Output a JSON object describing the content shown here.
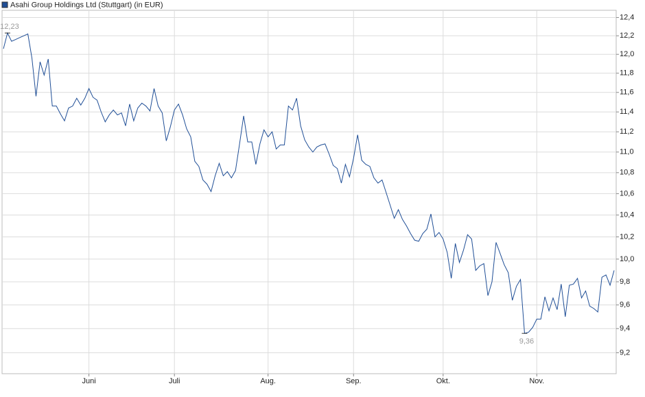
{
  "chart_data": {
    "type": "line",
    "log_scale": true,
    "grid": true,
    "title": "Asahi Group Holdings Ltd (Stuttgart) (in EUR)",
    "series": [
      {
        "color": "#1f4e96",
        "values": [
          12.06,
          12.23,
          12.14,
          12.16,
          12.18,
          12.2,
          12.22,
          11.96,
          11.56,
          11.92,
          11.78,
          11.95,
          11.46,
          11.46,
          11.38,
          11.31,
          11.44,
          11.46,
          11.54,
          11.47,
          11.54,
          11.64,
          11.55,
          11.52,
          11.4,
          11.3,
          11.37,
          11.42,
          11.37,
          11.39,
          11.26,
          11.48,
          11.31,
          11.44,
          11.49,
          11.46,
          11.41,
          11.64,
          11.46,
          11.39,
          11.11,
          11.25,
          11.42,
          11.48,
          11.37,
          11.23,
          11.15,
          10.91,
          10.86,
          10.73,
          10.69,
          10.62,
          10.77,
          10.89,
          10.77,
          10.81,
          10.75,
          10.82,
          11.08,
          11.36,
          11.1,
          11.1,
          10.88,
          11.08,
          11.22,
          11.15,
          11.2,
          11.03,
          11.07,
          11.07,
          11.46,
          11.42,
          11.54,
          11.26,
          11.12,
          11.05,
          11.0,
          11.05,
          11.07,
          11.08,
          10.98,
          10.87,
          10.84,
          10.7,
          10.88,
          10.76,
          10.94,
          11.17,
          10.92,
          10.88,
          10.86,
          10.75,
          10.7,
          10.73,
          10.61,
          10.49,
          10.37,
          10.45,
          10.36,
          10.3,
          10.23,
          10.17,
          10.16,
          10.23,
          10.27,
          10.41,
          10.2,
          10.24,
          10.18,
          10.06,
          9.83,
          10.14,
          9.97,
          10.08,
          10.22,
          10.18,
          9.9,
          9.94,
          9.96,
          9.68,
          9.8,
          10.15,
          10.05,
          9.95,
          9.88,
          9.64,
          9.76,
          9.82,
          9.36,
          9.37,
          9.41,
          9.48,
          9.48,
          9.67,
          9.55,
          9.66,
          9.56,
          9.78,
          9.5,
          9.77,
          9.78,
          9.83,
          9.66,
          9.72,
          9.59,
          9.57,
          9.54,
          9.84,
          9.86,
          9.77,
          9.9
        ]
      }
    ],
    "annotations": [
      {
        "value": 12.23,
        "label": "12,23"
      },
      {
        "value": 9.36,
        "label": "9,36"
      }
    ],
    "xlim": [
      0,
      150
    ],
    "xticks": [
      {
        "value": 21,
        "label": "Juni"
      },
      {
        "value": 42,
        "label": "Juli"
      },
      {
        "value": 65,
        "label": "Aug."
      },
      {
        "value": 86,
        "label": "Sep."
      },
      {
        "value": 108,
        "label": "Okt."
      },
      {
        "value": 131,
        "label": "Nov."
      }
    ],
    "ylim": [
      9.03,
      12.48
    ],
    "yticks": [
      {
        "value": 9.2,
        "label": "9,2"
      },
      {
        "value": 9.4,
        "label": "9,4"
      },
      {
        "value": 9.6,
        "label": "9,6"
      },
      {
        "value": 9.8,
        "label": "9,8"
      },
      {
        "value": 10.0,
        "label": "10,0"
      },
      {
        "value": 10.2,
        "label": "10,2"
      },
      {
        "value": 10.4,
        "label": "10,4"
      },
      {
        "value": 10.6,
        "label": "10,6"
      },
      {
        "value": 10.8,
        "label": "10,8"
      },
      {
        "value": 11.0,
        "label": "11,0"
      },
      {
        "value": 11.2,
        "label": "11,2"
      },
      {
        "value": 11.4,
        "label": "11,4"
      },
      {
        "value": 11.6,
        "label": "11,6"
      },
      {
        "value": 11.8,
        "label": "11,8"
      },
      {
        "value": 12.0,
        "label": "12,0"
      },
      {
        "value": 12.2,
        "label": "12,2"
      },
      {
        "value": 12.4,
        "label": "12,4"
      }
    ]
  }
}
